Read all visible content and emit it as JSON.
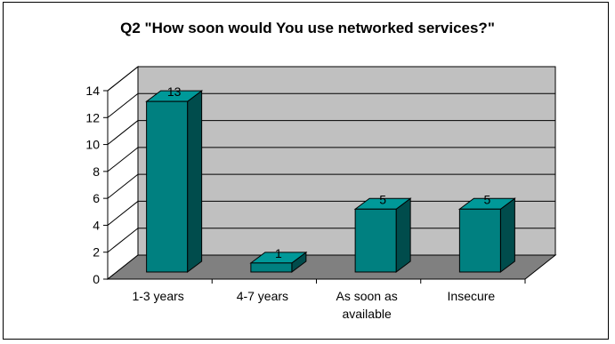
{
  "chart_data": {
    "type": "bar",
    "title": "Q2 \"How soon would You use networked services?\"",
    "categories": [
      "1-3 years",
      "4-7 years",
      "As soon as available",
      "Insecure"
    ],
    "category_label_lines": [
      [
        "1-3 years"
      ],
      [
        "4-7 years"
      ],
      [
        "As soon as",
        "available"
      ],
      [
        "Insecure"
      ]
    ],
    "values": [
      13,
      1,
      5,
      5
    ],
    "data_labels": [
      "13",
      "1",
      "5",
      "5"
    ],
    "ylim": [
      0,
      14
    ],
    "yticks": [
      0,
      2,
      4,
      6,
      8,
      10,
      12,
      14
    ],
    "grid": true,
    "legend": "none",
    "style": "3d-column",
    "colors": {
      "bar_front": "#008080",
      "bar_side": "#004C4C",
      "bar_top": "#009999",
      "back_wall": "#C0C0C0",
      "floor": "#808080"
    }
  }
}
